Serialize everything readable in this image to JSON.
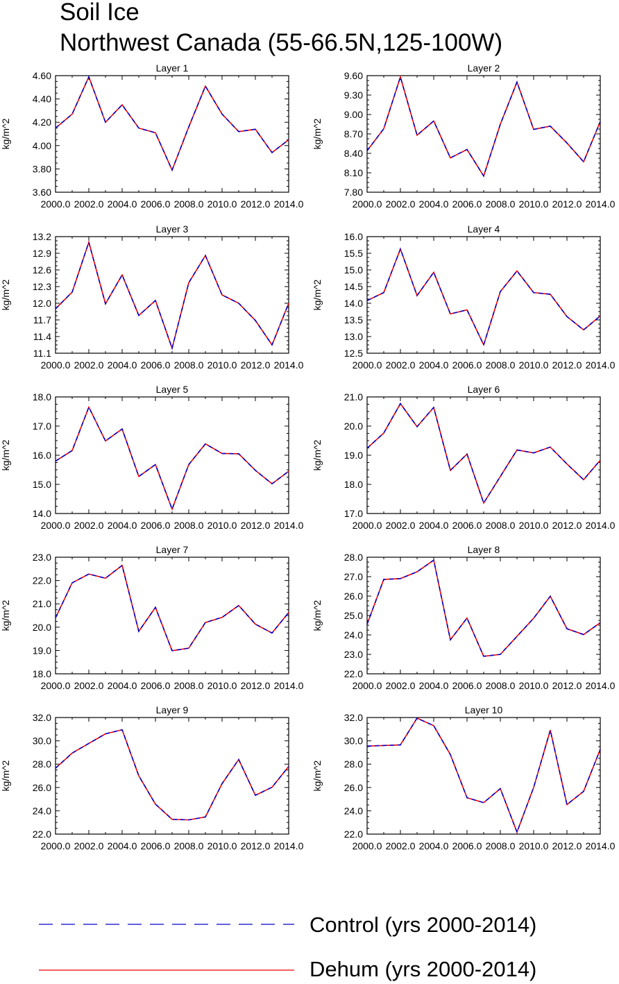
{
  "title_line1": "Soil Ice",
  "title_line2": "Northwest Canada (55-66.5N,125-100W)",
  "colors": {
    "control": "#0000cc",
    "dehum": "#ee0000",
    "axis": "#000000"
  },
  "legend": [
    {
      "label": "Control (yrs 2000-2014)",
      "style": "dashed",
      "color": "#0000cc"
    },
    {
      "label": "Dehum (yrs 2000-2014)",
      "style": "solid",
      "color": "#ee0000"
    }
  ],
  "chart_data": [
    {
      "type": "line",
      "title": "Layer 1",
      "ylabel": "kg/m^2",
      "x": [
        2000,
        2001,
        2002,
        2003,
        2004,
        2005,
        2006,
        2007,
        2008,
        2009,
        2010,
        2011,
        2012,
        2013,
        2014
      ],
      "xlim": [
        2000,
        2014
      ],
      "xticks": [
        "2000.0",
        "2002.0",
        "2004.0",
        "2006.0",
        "2008.0",
        "2010.0",
        "2012.0",
        "2014.0"
      ],
      "ylim": [
        3.6,
        4.6
      ],
      "yticks": [
        "3.60",
        "3.80",
        "4.00",
        "4.20",
        "4.40",
        "4.60"
      ],
      "series": [
        {
          "name": "Control (yrs 2000-2014)",
          "values": [
            4.15,
            4.27,
            4.59,
            4.2,
            4.35,
            4.15,
            4.11,
            3.79,
            4.16,
            4.51,
            4.27,
            4.12,
            4.14,
            3.94,
            4.05
          ]
        },
        {
          "name": "Dehum (yrs 2000-2014)",
          "values": [
            4.15,
            4.27,
            4.59,
            4.2,
            4.35,
            4.15,
            4.11,
            3.79,
            4.16,
            4.51,
            4.27,
            4.12,
            4.14,
            3.94,
            4.05
          ]
        }
      ]
    },
    {
      "type": "line",
      "title": "Layer 2",
      "ylabel": "kg/m^2",
      "x": [
        2000,
        2001,
        2002,
        2003,
        2004,
        2005,
        2006,
        2007,
        2008,
        2009,
        2010,
        2011,
        2012,
        2013,
        2014
      ],
      "xlim": [
        2000,
        2014
      ],
      "xticks": [
        "2000.0",
        "2002.0",
        "2004.0",
        "2006.0",
        "2008.0",
        "2010.0",
        "2012.0",
        "2014.0"
      ],
      "ylim": [
        7.8,
        9.6
      ],
      "yticks": [
        "7.80",
        "8.10",
        "8.40",
        "8.70",
        "9.00",
        "9.30",
        "9.60"
      ],
      "series": [
        {
          "name": "Control (yrs 2000-2014)",
          "values": [
            8.44,
            8.78,
            9.58,
            8.68,
            8.9,
            8.33,
            8.46,
            8.05,
            8.85,
            9.5,
            8.77,
            8.82,
            8.56,
            8.27,
            8.89
          ]
        },
        {
          "name": "Dehum (yrs 2000-2014)",
          "values": [
            8.44,
            8.78,
            9.58,
            8.68,
            8.9,
            8.33,
            8.46,
            8.05,
            8.85,
            9.5,
            8.77,
            8.82,
            8.56,
            8.27,
            8.89
          ]
        }
      ]
    },
    {
      "type": "line",
      "title": "Layer 3",
      "ylabel": "kg/m^2",
      "x": [
        2000,
        2001,
        2002,
        2003,
        2004,
        2005,
        2006,
        2007,
        2008,
        2009,
        2010,
        2011,
        2012,
        2013,
        2014
      ],
      "xlim": [
        2000,
        2014
      ],
      "xticks": [
        "2000.0",
        "2002.0",
        "2004.0",
        "2006.0",
        "2008.0",
        "2010.0",
        "2012.0",
        "2014.0"
      ],
      "ylim": [
        11.1,
        13.2
      ],
      "yticks": [
        "11.1",
        "11.4",
        "11.7",
        "12.0",
        "12.3",
        "12.6",
        "12.9",
        "13.2"
      ],
      "series": [
        {
          "name": "Control (yrs 2000-2014)",
          "values": [
            11.9,
            12.2,
            13.1,
            11.99,
            12.51,
            11.78,
            12.05,
            11.19,
            12.37,
            12.86,
            12.15,
            12.0,
            11.69,
            11.25,
            12.0
          ]
        },
        {
          "name": "Dehum (yrs 2000-2014)",
          "values": [
            11.9,
            12.2,
            13.1,
            11.99,
            12.51,
            11.78,
            12.05,
            11.19,
            12.37,
            12.86,
            12.15,
            12.0,
            11.69,
            11.25,
            12.0
          ]
        }
      ]
    },
    {
      "type": "line",
      "title": "Layer 4",
      "ylabel": "kg/m^2",
      "x": [
        2000,
        2001,
        2002,
        2003,
        2004,
        2005,
        2006,
        2007,
        2008,
        2009,
        2010,
        2011,
        2012,
        2013,
        2014
      ],
      "xlim": [
        2000,
        2014
      ],
      "xticks": [
        "2000.0",
        "2002.0",
        "2004.0",
        "2006.0",
        "2008.0",
        "2010.0",
        "2012.0",
        "2014.0"
      ],
      "ylim": [
        12.5,
        16.0
      ],
      "yticks": [
        "12.5",
        "13.0",
        "13.5",
        "14.0",
        "14.5",
        "15.0",
        "15.5",
        "16.0"
      ],
      "series": [
        {
          "name": "Control (yrs 2000-2014)",
          "values": [
            14.08,
            14.32,
            15.63,
            14.23,
            14.93,
            13.68,
            13.8,
            12.75,
            14.35,
            14.97,
            14.32,
            14.27,
            13.6,
            13.2,
            13.62
          ]
        },
        {
          "name": "Dehum (yrs 2000-2014)",
          "values": [
            14.08,
            14.32,
            15.63,
            14.23,
            14.93,
            13.68,
            13.8,
            12.75,
            14.35,
            14.97,
            14.32,
            14.27,
            13.6,
            13.2,
            13.62
          ]
        }
      ]
    },
    {
      "type": "line",
      "title": "Layer 5",
      "ylabel": "kg/m^2",
      "x": [
        2000,
        2001,
        2002,
        2003,
        2004,
        2005,
        2006,
        2007,
        2008,
        2009,
        2010,
        2011,
        2012,
        2013,
        2014
      ],
      "xlim": [
        2000,
        2014
      ],
      "xticks": [
        "2000.0",
        "2002.0",
        "2004.0",
        "2006.0",
        "2008.0",
        "2010.0",
        "2012.0",
        "2014.0"
      ],
      "ylim": [
        14.0,
        18.0
      ],
      "yticks": [
        "14.0",
        "15.0",
        "16.0",
        "17.0",
        "18.0"
      ],
      "series": [
        {
          "name": "Control (yrs 2000-2014)",
          "values": [
            15.8,
            16.16,
            17.65,
            16.49,
            16.9,
            15.27,
            15.68,
            14.15,
            15.68,
            16.39,
            16.06,
            16.05,
            15.48,
            15.02,
            15.45
          ]
        },
        {
          "name": "Dehum (yrs 2000-2014)",
          "values": [
            15.8,
            16.16,
            17.65,
            16.49,
            16.9,
            15.27,
            15.68,
            14.15,
            15.68,
            16.39,
            16.06,
            16.05,
            15.48,
            15.02,
            15.45
          ]
        }
      ]
    },
    {
      "type": "line",
      "title": "Layer 6",
      "ylabel": "kg/m^2",
      "x": [
        2000,
        2001,
        2002,
        2003,
        2004,
        2005,
        2006,
        2007,
        2008,
        2009,
        2010,
        2011,
        2012,
        2013,
        2014
      ],
      "xlim": [
        2000,
        2014
      ],
      "xticks": [
        "2000.0",
        "2002.0",
        "2004.0",
        "2006.0",
        "2008.0",
        "2010.0",
        "2012.0",
        "2014.0"
      ],
      "ylim": [
        17.0,
        21.0
      ],
      "yticks": [
        "17.0",
        "18.0",
        "19.0",
        "20.0",
        "21.0"
      ],
      "series": [
        {
          "name": "Control (yrs 2000-2014)",
          "values": [
            19.24,
            19.76,
            20.77,
            19.98,
            20.64,
            18.48,
            19.04,
            17.36,
            18.27,
            19.18,
            19.08,
            19.28,
            18.7,
            18.16,
            18.83
          ]
        },
        {
          "name": "Dehum (yrs 2000-2014)",
          "values": [
            19.24,
            19.76,
            20.77,
            19.98,
            20.64,
            18.48,
            19.04,
            17.36,
            18.27,
            19.18,
            19.08,
            19.28,
            18.7,
            18.16,
            18.83
          ]
        }
      ]
    },
    {
      "type": "line",
      "title": "Layer 7",
      "ylabel": "kg/m^2",
      "x": [
        2000,
        2001,
        2002,
        2003,
        2004,
        2005,
        2006,
        2007,
        2008,
        2009,
        2010,
        2011,
        2012,
        2013,
        2014
      ],
      "xlim": [
        2000,
        2014
      ],
      "xticks": [
        "2000.0",
        "2002.0",
        "2004.0",
        "2006.0",
        "2008.0",
        "2010.0",
        "2012.0",
        "2014.0"
      ],
      "ylim": [
        18.0,
        23.0
      ],
      "yticks": [
        "18.0",
        "19.0",
        "20.0",
        "21.0",
        "22.0",
        "23.0"
      ],
      "series": [
        {
          "name": "Control (yrs 2000-2014)",
          "values": [
            20.4,
            21.9,
            22.28,
            22.1,
            22.65,
            19.82,
            20.85,
            18.99,
            19.1,
            20.2,
            20.42,
            20.93,
            20.13,
            19.75,
            20.63
          ]
        },
        {
          "name": "Dehum (yrs 2000-2014)",
          "values": [
            20.4,
            21.9,
            22.28,
            22.1,
            22.65,
            19.82,
            20.85,
            18.99,
            19.1,
            20.2,
            20.42,
            20.93,
            20.13,
            19.75,
            20.63
          ]
        }
      ]
    },
    {
      "type": "line",
      "title": "Layer 8",
      "ylabel": "kg/m^2",
      "x": [
        2000,
        2001,
        2002,
        2003,
        2004,
        2005,
        2006,
        2007,
        2008,
        2009,
        2010,
        2011,
        2012,
        2013,
        2014
      ],
      "xlim": [
        2000,
        2014
      ],
      "xticks": [
        "2000.0",
        "2002.0",
        "2004.0",
        "2006.0",
        "2008.0",
        "2010.0",
        "2012.0",
        "2014.0"
      ],
      "ylim": [
        22.0,
        28.0
      ],
      "yticks": [
        "22.0",
        "23.0",
        "24.0",
        "25.0",
        "26.0",
        "27.0",
        "28.0"
      ],
      "series": [
        {
          "name": "Control (yrs 2000-2014)",
          "values": [
            24.55,
            26.86,
            26.9,
            27.25,
            27.85,
            23.75,
            24.87,
            22.9,
            23.0,
            23.93,
            24.86,
            25.99,
            24.32,
            24.02,
            24.63
          ]
        },
        {
          "name": "Dehum (yrs 2000-2014)",
          "values": [
            24.55,
            26.86,
            26.9,
            27.25,
            27.85,
            23.75,
            24.87,
            22.9,
            23.0,
            23.93,
            24.86,
            25.99,
            24.32,
            24.02,
            24.63
          ]
        }
      ]
    },
    {
      "type": "line",
      "title": "Layer 9",
      "ylabel": "kg/m^2",
      "x": [
        2000,
        2001,
        2002,
        2003,
        2004,
        2005,
        2006,
        2007,
        2008,
        2009,
        2010,
        2011,
        2012,
        2013,
        2014
      ],
      "xlim": [
        2000,
        2014
      ],
      "xticks": [
        "2000.0",
        "2002.0",
        "2004.0",
        "2006.0",
        "2008.0",
        "2010.0",
        "2012.0",
        "2014.0"
      ],
      "ylim": [
        22.0,
        32.0
      ],
      "yticks": [
        "22.0",
        "24.0",
        "26.0",
        "28.0",
        "30.0",
        "32.0"
      ],
      "series": [
        {
          "name": "Control (yrs 2000-2014)",
          "values": [
            27.65,
            28.95,
            29.78,
            30.6,
            30.95,
            27.0,
            24.57,
            23.27,
            23.22,
            23.47,
            26.33,
            28.4,
            25.33,
            26.02,
            27.8
          ]
        },
        {
          "name": "Dehum (yrs 2000-2014)",
          "values": [
            27.65,
            28.95,
            29.78,
            30.6,
            30.95,
            27.0,
            24.57,
            23.27,
            23.22,
            23.47,
            26.33,
            28.4,
            25.33,
            26.02,
            27.8
          ]
        }
      ]
    },
    {
      "type": "line",
      "title": "Layer 10",
      "ylabel": "kg/m^2",
      "x": [
        2000,
        2001,
        2002,
        2003,
        2004,
        2005,
        2006,
        2007,
        2008,
        2009,
        2010,
        2011,
        2012,
        2013,
        2014
      ],
      "xlim": [
        2000,
        2014
      ],
      "xticks": [
        "2000.0",
        "2002.0",
        "2004.0",
        "2006.0",
        "2008.0",
        "2010.0",
        "2012.0",
        "2014.0"
      ],
      "ylim": [
        22.0,
        32.0
      ],
      "yticks": [
        "22.0",
        "24.0",
        "26.0",
        "28.0",
        "30.0",
        "32.0"
      ],
      "series": [
        {
          "name": "Control (yrs 2000-2014)",
          "values": [
            29.55,
            29.6,
            29.65,
            31.95,
            31.3,
            28.82,
            25.12,
            24.7,
            25.9,
            22.17,
            26.0,
            30.92,
            24.53,
            25.67,
            29.27
          ]
        },
        {
          "name": "Dehum (yrs 2000-2014)",
          "values": [
            29.55,
            29.6,
            29.65,
            31.95,
            31.3,
            28.82,
            25.12,
            24.7,
            25.9,
            22.17,
            26.0,
            30.92,
            24.53,
            25.67,
            29.27
          ]
        }
      ]
    }
  ]
}
